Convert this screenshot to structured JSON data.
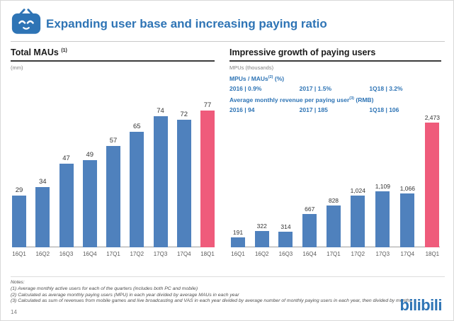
{
  "header": {
    "title": "Expanding user base and increasing paying ratio",
    "accent_color": "#2E74B5"
  },
  "left_chart": {
    "title": "Total MAUs",
    "title_sup": "(1)",
    "unit": "(mm)"
  },
  "right_chart": {
    "title": "Impressive growth of paying users",
    "unit": "MPUs (thousands)",
    "stat1": {
      "label": "MPUs / MAUs",
      "sup": "(2)",
      "post": " (%)",
      "values": [
        "2016 | 0.9%",
        "2017 | 1.5%",
        "1Q18 | 3.2%"
      ]
    },
    "stat2": {
      "label": "Average monthly revenue per paying user",
      "sup": "(3)",
      "post": " (RMB)",
      "values": [
        "2016 | 94",
        "2017 | 185",
        "1Q18 | 106"
      ]
    }
  },
  "chart_data": [
    {
      "type": "bar",
      "title": "Total MAUs (mm)",
      "categories": [
        "16Q1",
        "16Q2",
        "16Q3",
        "16Q4",
        "17Q1",
        "17Q2",
        "17Q3",
        "17Q4",
        "18Q1"
      ],
      "values": [
        29,
        34,
        47,
        49,
        57,
        65,
        74,
        72,
        77
      ],
      "labels": [
        "29",
        "34",
        "47",
        "49",
        "57",
        "65",
        "74",
        "72",
        "77"
      ],
      "ylim": [
        0,
        80
      ],
      "bar_color": "#4F81BD",
      "highlight_color": "#EF5B7B",
      "highlight_last": true,
      "grid": false,
      "legend": false
    },
    {
      "type": "bar",
      "title": "MPUs (thousands)",
      "categories": [
        "16Q1",
        "16Q2",
        "16Q3",
        "16Q4",
        "17Q1",
        "17Q2",
        "17Q3",
        "17Q4",
        "18Q1"
      ],
      "values": [
        191,
        322,
        314,
        667,
        828,
        1024,
        1109,
        1066,
        2473
      ],
      "labels": [
        "191",
        "322",
        "314",
        "667",
        "828",
        "1,024",
        "1,109",
        "1,066",
        "2,473"
      ],
      "ylim": [
        0,
        2500
      ],
      "bar_color": "#4F81BD",
      "highlight_color": "#EF5B7B",
      "highlight_last": true,
      "grid": false,
      "legend": false
    }
  ],
  "notes": {
    "title": "Notes:",
    "lines": [
      "(1) Average monthly active users for each of the quarters (includes both PC and mobile)",
      "(2) Calculated as average monthly paying users (MPU) in each year divided by average MAUs in each year",
      "(3) Calculated as sum of revenues from mobile games and live broadcasting and VAS in each year divided by average number of monthly paying users in each year, then divided by months"
    ]
  },
  "page": {
    "number": "14"
  },
  "footer": {
    "logo": "bilibili"
  }
}
